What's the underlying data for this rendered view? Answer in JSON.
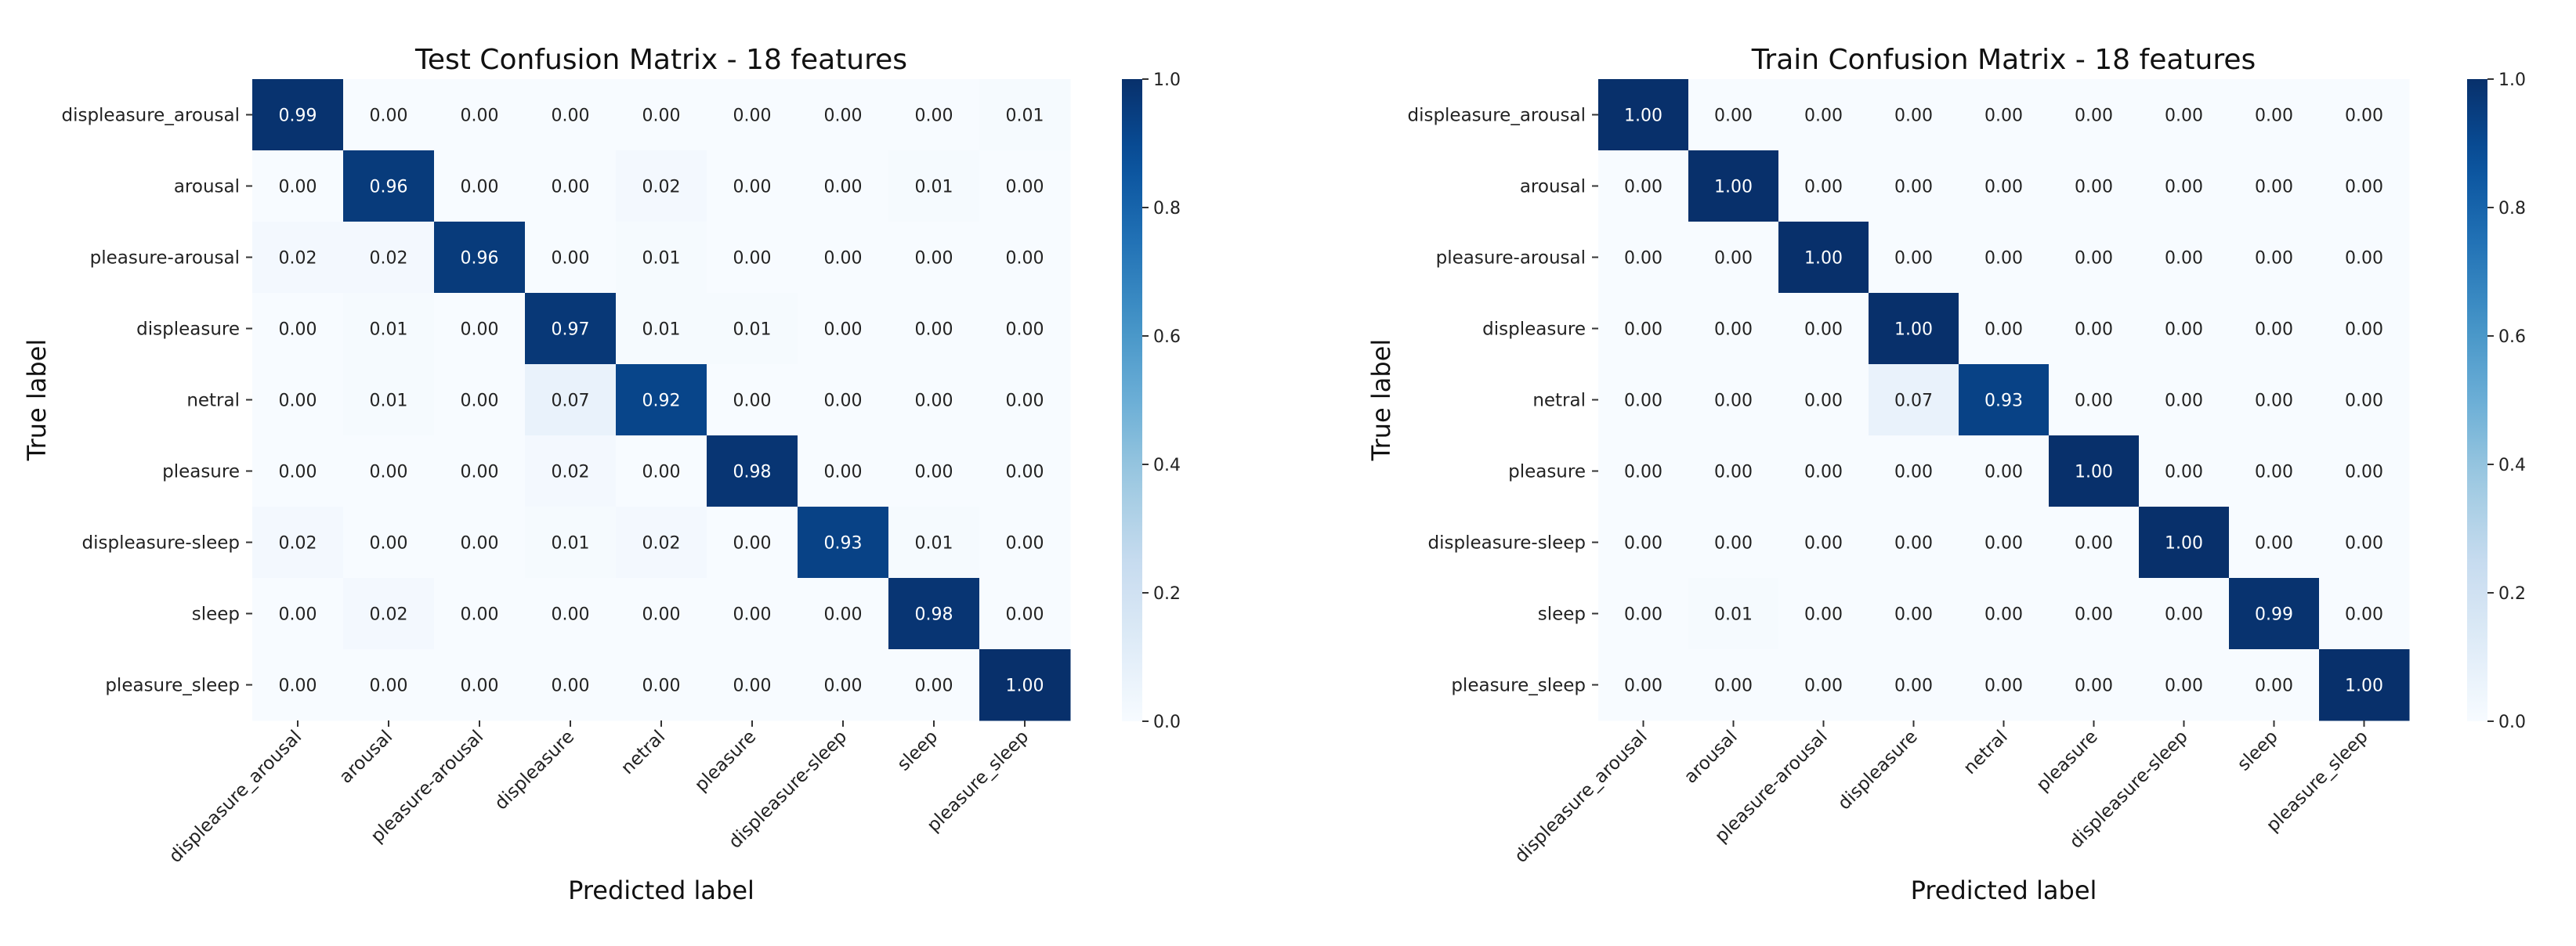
{
  "chart_data": [
    {
      "type": "heatmap",
      "title": "Test Confusion Matrix - 18 features",
      "xlabel": "Predicted label",
      "ylabel": "True label",
      "categories": [
        "displeasure_arousal",
        "arousal",
        "pleasure-arousal",
        "displeasure",
        "netral",
        "pleasure",
        "displeasure-sleep",
        "sleep",
        "pleasure_sleep"
      ],
      "matrix": [
        [
          0.99,
          0.0,
          0.0,
          0.0,
          0.0,
          0.0,
          0.0,
          0.0,
          0.01
        ],
        [
          0.0,
          0.96,
          0.0,
          0.0,
          0.02,
          0.0,
          0.0,
          0.01,
          0.0
        ],
        [
          0.02,
          0.02,
          0.96,
          0.0,
          0.01,
          0.0,
          0.0,
          0.0,
          0.0
        ],
        [
          0.0,
          0.01,
          0.0,
          0.97,
          0.01,
          0.01,
          0.0,
          0.0,
          0.0
        ],
        [
          0.0,
          0.01,
          0.0,
          0.07,
          0.92,
          0.0,
          0.0,
          0.0,
          0.0
        ],
        [
          0.0,
          0.0,
          0.0,
          0.02,
          0.0,
          0.98,
          0.0,
          0.0,
          0.0
        ],
        [
          0.02,
          0.0,
          0.0,
          0.01,
          0.02,
          0.0,
          0.93,
          0.01,
          0.0
        ],
        [
          0.0,
          0.02,
          0.0,
          0.0,
          0.0,
          0.0,
          0.0,
          0.98,
          0.0
        ],
        [
          0.0,
          0.0,
          0.0,
          0.0,
          0.0,
          0.0,
          0.0,
          0.0,
          1.0
        ]
      ],
      "colorbar": {
        "min": 0.0,
        "max": 1.0,
        "ticks": [
          "0.0",
          "0.2",
          "0.4",
          "0.6",
          "0.8",
          "1.0"
        ]
      },
      "colormap": "Blues"
    },
    {
      "type": "heatmap",
      "title": "Train Confusion Matrix - 18 features",
      "xlabel": "Predicted label",
      "ylabel": "True label",
      "categories": [
        "displeasure_arousal",
        "arousal",
        "pleasure-arousal",
        "displeasure",
        "netral",
        "pleasure",
        "displeasure-sleep",
        "sleep",
        "pleasure_sleep"
      ],
      "matrix": [
        [
          1.0,
          0.0,
          0.0,
          0.0,
          0.0,
          0.0,
          0.0,
          0.0,
          0.0
        ],
        [
          0.0,
          1.0,
          0.0,
          0.0,
          0.0,
          0.0,
          0.0,
          0.0,
          0.0
        ],
        [
          0.0,
          0.0,
          1.0,
          0.0,
          0.0,
          0.0,
          0.0,
          0.0,
          0.0
        ],
        [
          0.0,
          0.0,
          0.0,
          1.0,
          0.0,
          0.0,
          0.0,
          0.0,
          0.0
        ],
        [
          0.0,
          0.0,
          0.0,
          0.07,
          0.93,
          0.0,
          0.0,
          0.0,
          0.0
        ],
        [
          0.0,
          0.0,
          0.0,
          0.0,
          0.0,
          1.0,
          0.0,
          0.0,
          0.0
        ],
        [
          0.0,
          0.0,
          0.0,
          0.0,
          0.0,
          0.0,
          1.0,
          0.0,
          0.0
        ],
        [
          0.0,
          0.01,
          0.0,
          0.0,
          0.0,
          0.0,
          0.0,
          0.99,
          0.0
        ],
        [
          0.0,
          0.0,
          0.0,
          0.0,
          0.0,
          0.0,
          0.0,
          0.0,
          1.0
        ]
      ],
      "colorbar": {
        "min": 0.0,
        "max": 1.0,
        "ticks": [
          "0.0",
          "0.2",
          "0.4",
          "0.6",
          "0.8",
          "1.0"
        ]
      },
      "colormap": "Blues"
    }
  ]
}
